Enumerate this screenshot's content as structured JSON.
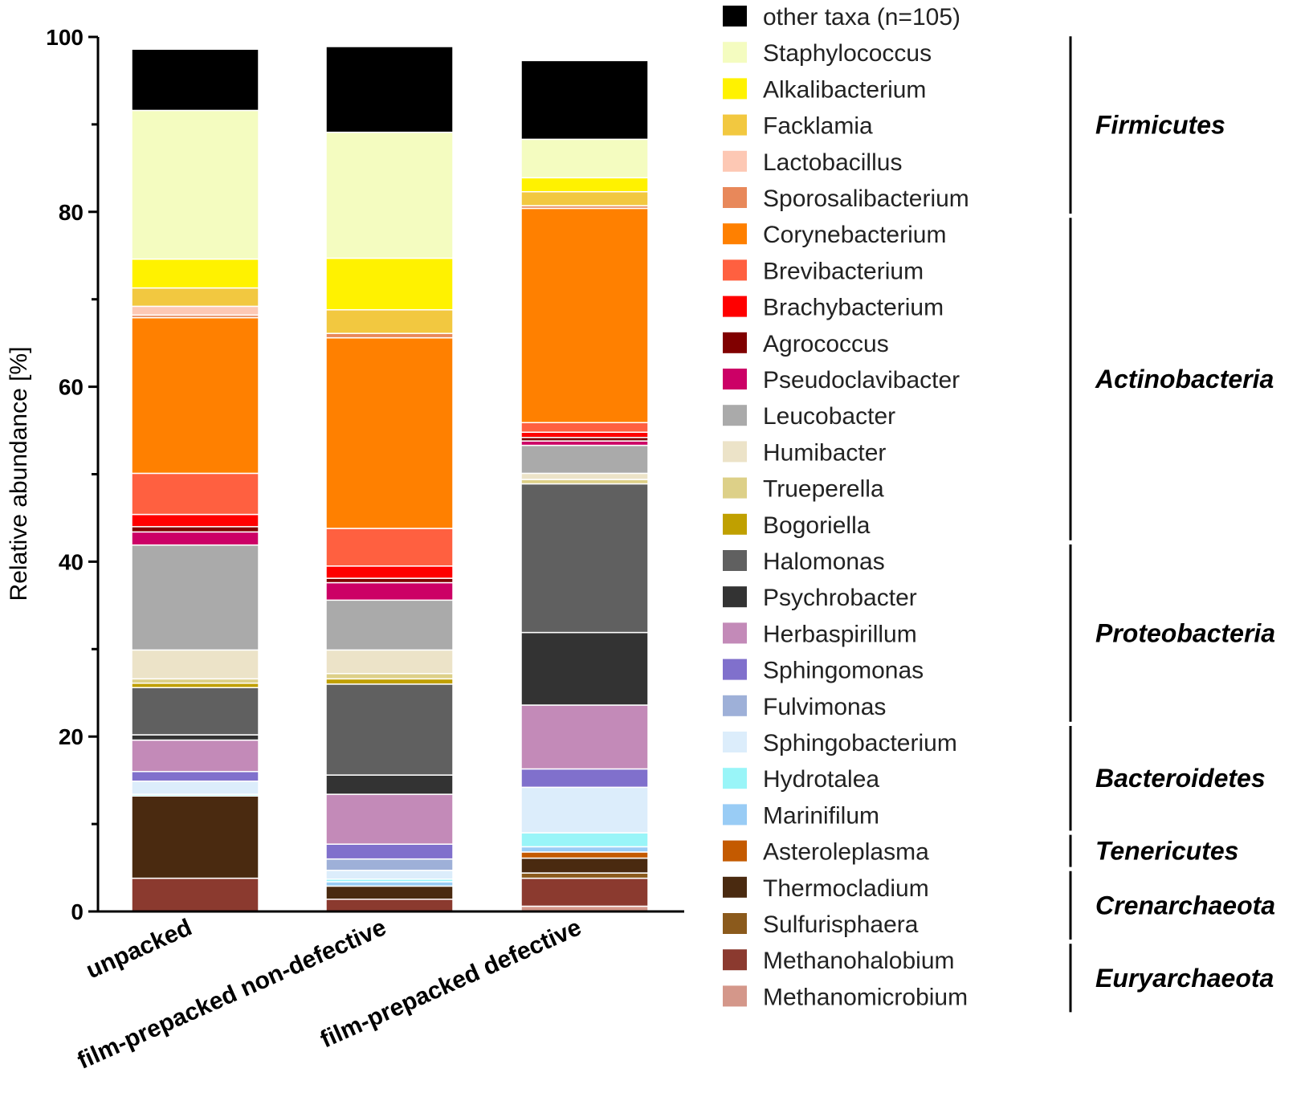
{
  "chart_data": {
    "type": "bar",
    "stacked": true,
    "title": "",
    "xlabel": "",
    "ylabel": "Relative abundance [%]",
    "ylim": [
      0,
      100
    ],
    "yticks": [
      0,
      20,
      40,
      60,
      80,
      100
    ],
    "categories": [
      "unpacked",
      "film-prepacked non-defective",
      "film-prepacked defective"
    ],
    "series": [
      {
        "name": "Methanomicrobium",
        "color": "#d4978a",
        "values": [
          0.0,
          0.0,
          0.6
        ]
      },
      {
        "name": "Methanohalobium",
        "color": "#8b3a2f",
        "values": [
          3.8,
          1.4,
          3.2
        ]
      },
      {
        "name": "Sulfurisphaera",
        "color": "#8b5a1c",
        "values": [
          0.0,
          0.0,
          0.6
        ]
      },
      {
        "name": "Thermocladium",
        "color": "#4a2a10",
        "values": [
          9.4,
          1.5,
          1.7
        ]
      },
      {
        "name": "Asteroleplasma",
        "color": "#c45a00",
        "values": [
          0.0,
          0.0,
          0.7
        ]
      },
      {
        "name": "Marinifilum",
        "color": "#99ccf5",
        "values": [
          0.0,
          0.5,
          0.6
        ]
      },
      {
        "name": "Hydrotalea",
        "color": "#99f5f8",
        "values": [
          0.2,
          0.3,
          1.6
        ]
      },
      {
        "name": "Sphingobacterium",
        "color": "#dcedfb",
        "values": [
          1.5,
          1.0,
          5.2
        ]
      },
      {
        "name": "Fulvimonas",
        "color": "#9eb0d8",
        "values": [
          0.0,
          1.3,
          0.0
        ]
      },
      {
        "name": "Sphingomonas",
        "color": "#8070cc",
        "values": [
          1.1,
          1.7,
          2.1
        ]
      },
      {
        "name": "Herbaspirillum",
        "color": "#c38ab8",
        "values": [
          3.6,
          5.7,
          7.3
        ]
      },
      {
        "name": "Psychrobacter",
        "color": "#333333",
        "values": [
          0.6,
          2.2,
          8.3
        ]
      },
      {
        "name": "Halomonas",
        "color": "#606060",
        "values": [
          5.4,
          10.4,
          17.0
        ]
      },
      {
        "name": "Bogoriella",
        "color": "#c0a000",
        "values": [
          0.5,
          0.6,
          0.0
        ]
      },
      {
        "name": "Trueperella",
        "color": "#ddd088",
        "values": [
          0.5,
          0.6,
          0.5
        ]
      },
      {
        "name": "Humibacter",
        "color": "#ece3c8",
        "values": [
          3.3,
          2.7,
          0.7
        ]
      },
      {
        "name": "Leucobacter",
        "color": "#aaaaaa",
        "values": [
          12.0,
          5.7,
          3.2
        ]
      },
      {
        "name": "Pseudoclavibacter",
        "color": "#cc0066",
        "values": [
          1.5,
          2.0,
          0.5
        ]
      },
      {
        "name": "Agrococcus",
        "color": "#800000",
        "values": [
          0.6,
          0.5,
          0.4
        ]
      },
      {
        "name": "Brachybacterium",
        "color": "#ff0000",
        "values": [
          1.4,
          1.4,
          0.6
        ]
      },
      {
        "name": "Brevibacterium",
        "color": "#ff6040",
        "values": [
          4.7,
          4.3,
          1.1
        ]
      },
      {
        "name": "Corynebacterium",
        "color": "#ff8000",
        "values": [
          17.8,
          21.8,
          24.5
        ]
      },
      {
        "name": "Sporosalibacterium",
        "color": "#e8885a",
        "values": [
          0.3,
          0.5,
          0.3
        ]
      },
      {
        "name": "Lactobacillus",
        "color": "#fdc8b4",
        "values": [
          1.0,
          0.0,
          0.0
        ]
      },
      {
        "name": "Facklamia",
        "color": "#f2c840",
        "values": [
          2.1,
          2.7,
          1.6
        ]
      },
      {
        "name": "Alkalibacterium",
        "color": "#fff200",
        "values": [
          3.3,
          5.9,
          1.6
        ]
      },
      {
        "name": "Staphylococcus",
        "color": "#f4fcc0",
        "values": [
          17.0,
          14.4,
          4.4
        ]
      },
      {
        "name": "other taxa (n=105)",
        "color": "#000000",
        "values": [
          7.0,
          9.8,
          9.0
        ]
      }
    ],
    "legend": {
      "position": "right",
      "entries": [
        {
          "name": "other taxa (n=105)",
          "color": "#000000"
        },
        {
          "name": "Staphylococcus",
          "color": "#f4fcc0"
        },
        {
          "name": "Alkalibacterium",
          "color": "#fff200"
        },
        {
          "name": "Facklamia",
          "color": "#f2c840"
        },
        {
          "name": "Lactobacillus",
          "color": "#fdc8b4"
        },
        {
          "name": "Sporosalibacterium",
          "color": "#e8885a"
        },
        {
          "name": "Corynebacterium",
          "color": "#ff8000"
        },
        {
          "name": "Brevibacterium",
          "color": "#ff6040"
        },
        {
          "name": "Brachybacterium",
          "color": "#ff0000"
        },
        {
          "name": "Agrococcus",
          "color": "#800000"
        },
        {
          "name": "Pseudoclavibacter",
          "color": "#cc0066"
        },
        {
          "name": "Leucobacter",
          "color": "#aaaaaa"
        },
        {
          "name": "Humibacter",
          "color": "#ece3c8"
        },
        {
          "name": "Trueperella",
          "color": "#ddd088"
        },
        {
          "name": "Bogoriella",
          "color": "#c0a000"
        },
        {
          "name": "Halomonas",
          "color": "#606060"
        },
        {
          "name": "Psychrobacter",
          "color": "#333333"
        },
        {
          "name": "Herbaspirillum",
          "color": "#c38ab8"
        },
        {
          "name": "Sphingomonas",
          "color": "#8070cc"
        },
        {
          "name": "Fulvimonas",
          "color": "#9eb0d8"
        },
        {
          "name": "Sphingobacterium",
          "color": "#dcedfb"
        },
        {
          "name": "Hydrotalea",
          "color": "#99f5f8"
        },
        {
          "name": "Marinifilum",
          "color": "#99ccf5"
        },
        {
          "name": "Asteroleplasma",
          "color": "#c45a00"
        },
        {
          "name": "Thermocladium",
          "color": "#4a2a10"
        },
        {
          "name": "Sulfurisphaera",
          "color": "#8b5a1c"
        },
        {
          "name": "Methanohalobium",
          "color": "#8b3a2f"
        },
        {
          "name": "Methanomicrobium",
          "color": "#d4978a"
        }
      ]
    },
    "phyla": [
      {
        "name": "Firmicutes",
        "from": "Staphylococcus",
        "to": "Sporosalibacterium"
      },
      {
        "name": "Actinobacteria",
        "from": "Corynebacterium",
        "to": "Bogoriella"
      },
      {
        "name": "Proteobacteria",
        "from": "Halomonas",
        "to": "Fulvimonas"
      },
      {
        "name": "Bacteroidetes",
        "from": "Sphingobacterium",
        "to": "Marinifilum"
      },
      {
        "name": "Tenericutes",
        "from": "Asteroleplasma",
        "to": "Asteroleplasma"
      },
      {
        "name": "Crenarchaeota",
        "from": "Thermocladium",
        "to": "Sulfurisphaera"
      },
      {
        "name": "Euryarchaeota",
        "from": "Methanohalobium",
        "to": "Methanomicrobium"
      }
    ]
  }
}
